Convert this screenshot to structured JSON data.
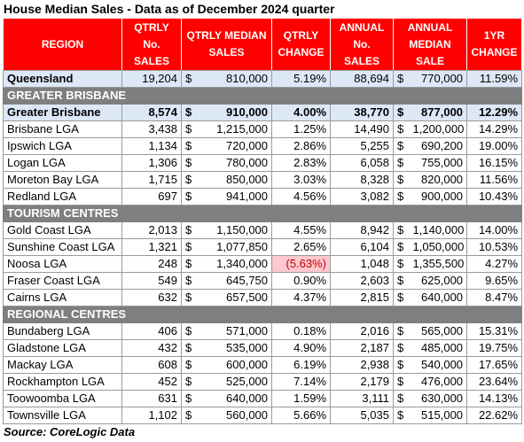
{
  "title": "House Median Sales - Data as of December 2024 quarter",
  "source": "Source: CoreLogic Data",
  "currency_symbol": "$",
  "colors": {
    "header_bg": "#ff0000",
    "section_bg": "#7f7f7f",
    "summary_bg": "#dde8f7",
    "negative_bg": "#ffc7ce",
    "negative_text": "#c00000"
  },
  "headers": {
    "region": "REGION",
    "qtrly_no_sales": "QTRLY No. SALES",
    "qtrly_median_sales": "QTRLY MEDIAN SALES",
    "qtrly_change": "QTRLY CHANGE",
    "annual_no_sales": "ANNUAL No. SALES",
    "annual_median_sale": "ANNUAL MEDIAN SALE",
    "change_1yr": "1YR CHANGE"
  },
  "queensland": {
    "region": "Queensland",
    "qtrly_sales": "19,204",
    "qtrly_median": "810,000",
    "qtrly_change": "5.19%",
    "annual_sales": "88,694",
    "annual_median": "770,000",
    "change_1yr": "11.59%"
  },
  "sections": [
    {
      "name": "GREATER BRISBANE",
      "summary": {
        "region": "Greater Brisbane",
        "qtrly_sales": "8,574",
        "qtrly_median": "910,000",
        "qtrly_change": "4.00%",
        "annual_sales": "38,770",
        "annual_median": "877,000",
        "change_1yr": "12.29%"
      },
      "rows": [
        {
          "region": "Brisbane LGA",
          "qtrly_sales": "3,438",
          "qtrly_median": "1,215,000",
          "qtrly_change": "1.25%",
          "annual_sales": "14,490",
          "annual_median": "1,200,000",
          "change_1yr": "14.29%"
        },
        {
          "region": "Ipswich LGA",
          "qtrly_sales": "1,134",
          "qtrly_median": "720,000",
          "qtrly_change": "2.86%",
          "annual_sales": "5,255",
          "annual_median": "690,200",
          "change_1yr": "19.00%"
        },
        {
          "region": "Logan LGA",
          "qtrly_sales": "1,306",
          "qtrly_median": "780,000",
          "qtrly_change": "2.83%",
          "annual_sales": "6,058",
          "annual_median": "755,000",
          "change_1yr": "16.15%"
        },
        {
          "region": "Moreton Bay LGA",
          "qtrly_sales": "1,715",
          "qtrly_median": "850,000",
          "qtrly_change": "3.03%",
          "annual_sales": "8,328",
          "annual_median": "820,000",
          "change_1yr": "11.56%"
        },
        {
          "region": "Redland LGA",
          "qtrly_sales": "697",
          "qtrly_median": "941,000",
          "qtrly_change": "4.56%",
          "annual_sales": "3,082",
          "annual_median": "900,000",
          "change_1yr": "10.43%"
        }
      ]
    },
    {
      "name": "TOURISM CENTRES",
      "rows": [
        {
          "region": "Gold Coast LGA",
          "qtrly_sales": "2,013",
          "qtrly_median": "1,150,000",
          "qtrly_change": "4.55%",
          "annual_sales": "8,942",
          "annual_median": "1,140,000",
          "change_1yr": "14.00%"
        },
        {
          "region": "Sunshine Coast LGA",
          "qtrly_sales": "1,321",
          "qtrly_median": "1,077,850",
          "qtrly_change": "2.65%",
          "annual_sales": "6,104",
          "annual_median": "1,050,000",
          "change_1yr": "10.53%"
        },
        {
          "region": "Noosa LGA",
          "qtrly_sales": "248",
          "qtrly_median": "1,340,000",
          "qtrly_change": "(5.63%)",
          "qtrly_change_negative": true,
          "annual_sales": "1,048",
          "annual_median": "1,355,500",
          "change_1yr": "4.27%"
        },
        {
          "region": "Fraser Coast LGA",
          "qtrly_sales": "549",
          "qtrly_median": "645,750",
          "qtrly_change": "0.90%",
          "annual_sales": "2,603",
          "annual_median": "625,000",
          "change_1yr": "9.65%"
        },
        {
          "region": "Cairns LGA",
          "qtrly_sales": "632",
          "qtrly_median": "657,500",
          "qtrly_change": "4.37%",
          "annual_sales": "2,815",
          "annual_median": "640,000",
          "change_1yr": "8.47%"
        }
      ]
    },
    {
      "name": "REGIONAL CENTRES",
      "rows": [
        {
          "region": "Bundaberg LGA",
          "qtrly_sales": "406",
          "qtrly_median": "571,000",
          "qtrly_change": "0.18%",
          "annual_sales": "2,016",
          "annual_median": "565,000",
          "change_1yr": "15.31%"
        },
        {
          "region": "Gladstone LGA",
          "qtrly_sales": "432",
          "qtrly_median": "535,000",
          "qtrly_change": "4.90%",
          "annual_sales": "2,187",
          "annual_median": "485,000",
          "change_1yr": "19.75%"
        },
        {
          "region": "Mackay LGA",
          "qtrly_sales": "608",
          "qtrly_median": "600,000",
          "qtrly_change": "6.19%",
          "annual_sales": "2,938",
          "annual_median": "540,000",
          "change_1yr": "17.65%"
        },
        {
          "region": "Rockhampton LGA",
          "qtrly_sales": "452",
          "qtrly_median": "525,000",
          "qtrly_change": "7.14%",
          "annual_sales": "2,179",
          "annual_median": "476,000",
          "change_1yr": "23.64%"
        },
        {
          "region": "Toowoomba LGA",
          "qtrly_sales": "631",
          "qtrly_median": "640,000",
          "qtrly_change": "1.59%",
          "annual_sales": "3,111",
          "annual_median": "630,000",
          "change_1yr": "14.13%"
        },
        {
          "region": "Townsville LGA",
          "qtrly_sales": "1,102",
          "qtrly_median": "560,000",
          "qtrly_change": "5.66%",
          "annual_sales": "5,035",
          "annual_median": "515,000",
          "change_1yr": "22.62%"
        }
      ]
    }
  ]
}
